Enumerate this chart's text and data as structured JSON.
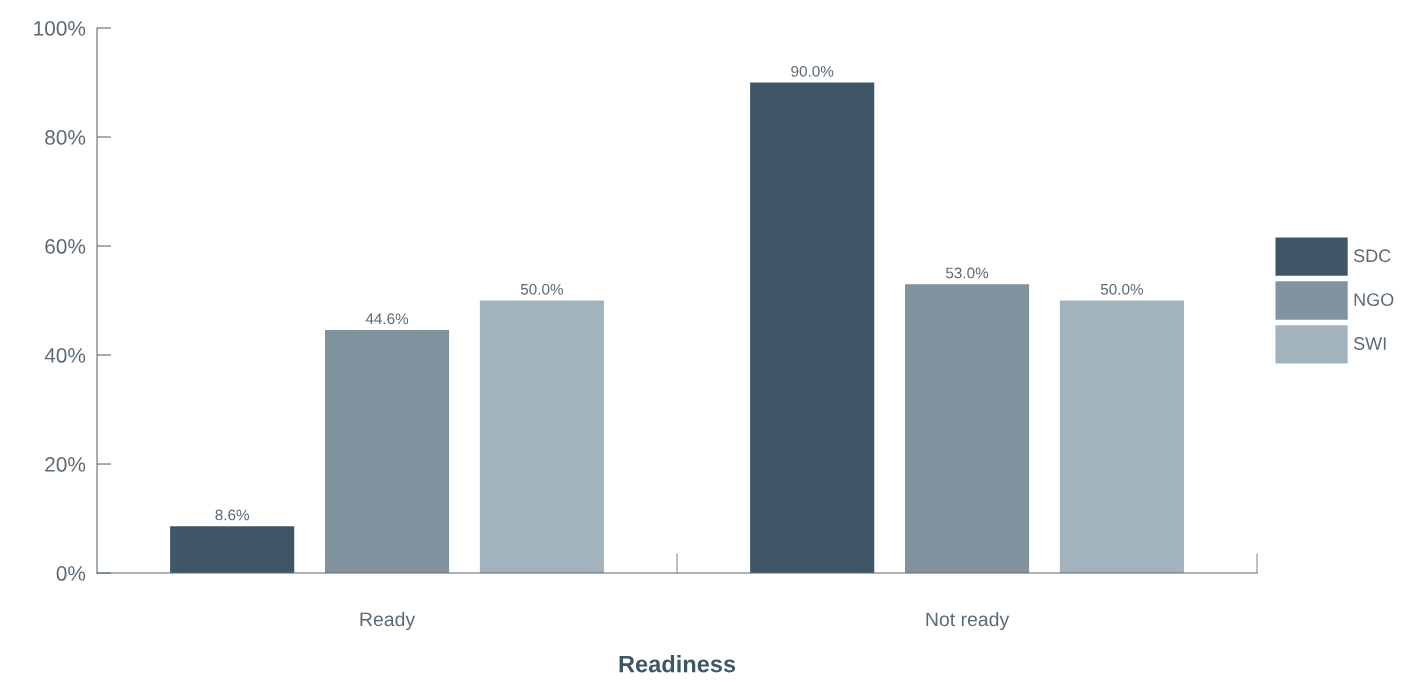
{
  "chart_data": {
    "type": "bar",
    "xlabel": "Readiness",
    "categories": [
      "Ready",
      "Not ready"
    ],
    "series": [
      {
        "name": "SDC",
        "color": "#3f5666",
        "values": [
          8.6,
          90.0
        ],
        "value_labels": [
          "8.6%",
          "90.0%"
        ]
      },
      {
        "name": "NGO",
        "color": "#81939f",
        "values": [
          44.6,
          53.0
        ],
        "value_labels": [
          "44.6%",
          "53.0%"
        ]
      },
      {
        "name": "SWI",
        "color": "#a3b3bd",
        "values": [
          50.0,
          50.0
        ],
        "value_labels": [
          "50.0%",
          "50.0%"
        ]
      }
    ],
    "ylim": [
      0,
      100
    ],
    "yticks": [
      {
        "value": 0,
        "label": "0%"
      },
      {
        "value": 20,
        "label": "20%"
      },
      {
        "value": 40,
        "label": "40%"
      },
      {
        "value": 60,
        "label": "60%"
      },
      {
        "value": 80,
        "label": "80%"
      },
      {
        "value": 100,
        "label": "100%"
      }
    ],
    "grid": false,
    "legend": "right"
  }
}
